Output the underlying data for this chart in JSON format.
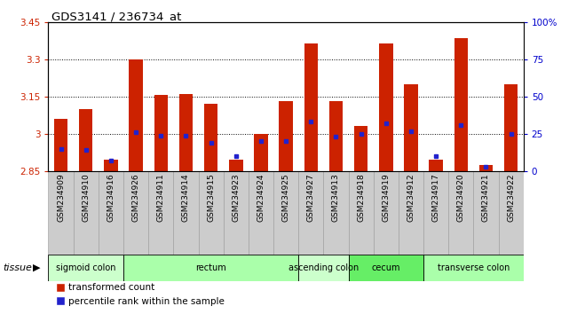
{
  "title": "GDS3141 / 236734_at",
  "samples": [
    "GSM234909",
    "GSM234910",
    "GSM234916",
    "GSM234926",
    "GSM234911",
    "GSM234914",
    "GSM234915",
    "GSM234923",
    "GSM234924",
    "GSM234925",
    "GSM234927",
    "GSM234913",
    "GSM234918",
    "GSM234919",
    "GSM234912",
    "GSM234917",
    "GSM234920",
    "GSM234921",
    "GSM234922"
  ],
  "transformed_count": [
    3.06,
    3.1,
    2.895,
    3.3,
    3.155,
    3.16,
    3.12,
    2.895,
    3.0,
    3.13,
    3.365,
    3.13,
    3.03,
    3.365,
    3.2,
    2.895,
    3.385,
    2.875,
    3.2
  ],
  "percentile_rank": [
    15,
    14,
    7,
    26,
    24,
    24,
    19,
    10,
    20,
    20,
    33,
    23,
    25,
    32,
    27,
    10,
    31,
    3,
    25
  ],
  "ymin": 2.85,
  "ymax": 3.45,
  "yticks": [
    2.85,
    3.0,
    3.15,
    3.3,
    3.45
  ],
  "ytick_labels": [
    "2.85",
    "3",
    "3.15",
    "3.3",
    "3.45"
  ],
  "right_yticks": [
    0,
    25,
    50,
    75,
    100
  ],
  "right_ytick_labels": [
    "0",
    "25",
    "50",
    "75",
    "100%"
  ],
  "gridlines": [
    3.0,
    3.15,
    3.3
  ],
  "bar_color": "#cc2200",
  "dot_color": "#2222cc",
  "bg_color": "#ffffff",
  "tissue_groups": [
    {
      "label": "sigmoid colon",
      "start": 0,
      "end": 3,
      "color": "#ccffcc"
    },
    {
      "label": "rectum",
      "start": 3,
      "end": 10,
      "color": "#aaffaa"
    },
    {
      "label": "ascending colon",
      "start": 10,
      "end": 12,
      "color": "#ccffcc"
    },
    {
      "label": "cecum",
      "start": 12,
      "end": 15,
      "color": "#66ee66"
    },
    {
      "label": "transverse colon",
      "start": 15,
      "end": 19,
      "color": "#aaffaa"
    }
  ],
  "tissue_label": "tissue",
  "legend_red": "transformed count",
  "legend_blue": "percentile rank within the sample",
  "bar_width": 0.55,
  "axis_label_color_left": "#cc2200",
  "axis_label_color_right": "#0000cc",
  "xlabels_bg": "#cccccc"
}
